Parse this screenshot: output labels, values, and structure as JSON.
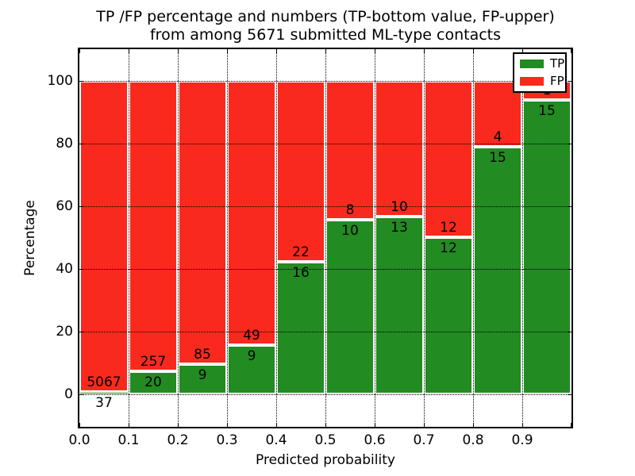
{
  "title": {
    "line1": "TP /FP percentage and numbers (TP-bottom value, FP-upper)",
    "line2": "from among 5671 submitted ML-type contacts"
  },
  "axes": {
    "xlabel": "Predicted probability",
    "ylabel": "Percentage",
    "x_tick_labels": [
      "0.0",
      "0.1",
      "0.2",
      "0.3",
      "0.4",
      "0.5",
      "0.6",
      "0.7",
      "0.8",
      "0.9"
    ],
    "y_tick_labels": [
      "0",
      "20",
      "40",
      "60",
      "80",
      "100"
    ],
    "y_tick_values": [
      0,
      20,
      40,
      60,
      80,
      100
    ]
  },
  "legend": {
    "position": "upper right",
    "entries": [
      {
        "label": "TP",
        "color": "#228b22"
      },
      {
        "label": "FP",
        "color": "#fa291d"
      }
    ]
  },
  "chart_data": {
    "type": "bar",
    "stacked": true,
    "normalized": "each bin scaled to 100%",
    "title": "TP /FP percentage and numbers (TP-bottom value, FP-upper) from among 5671 submitted ML-type contacts",
    "xlabel": "Predicted probability",
    "ylabel": "Percentage",
    "total_contacts": 5671,
    "bins": [
      "0.0-0.1",
      "0.1-0.2",
      "0.2-0.3",
      "0.3-0.4",
      "0.4-0.5",
      "0.5-0.6",
      "0.6-0.7",
      "0.7-0.8",
      "0.8-0.9",
      "0.9-1.0"
    ],
    "bin_width": 0.1,
    "series": [
      {
        "name": "TP",
        "color": "#228b22",
        "counts": [
          37,
          20,
          9,
          9,
          16,
          10,
          13,
          12,
          15,
          15
        ],
        "percent": [
          0.73,
          7.22,
          9.57,
          15.52,
          42.11,
          55.56,
          56.52,
          50.0,
          78.95,
          93.75
        ]
      },
      {
        "name": "FP",
        "color": "#fa291d",
        "counts": [
          5067,
          257,
          85,
          49,
          22,
          8,
          10,
          12,
          4,
          1
        ]
      }
    ],
    "xlim": [
      0.0,
      1.0
    ],
    "ylim": [
      -10.5,
      110
    ],
    "grid": {
      "style": "dotted",
      "color": "#000000",
      "x": true,
      "y": true
    },
    "legend_position": "upper right"
  }
}
